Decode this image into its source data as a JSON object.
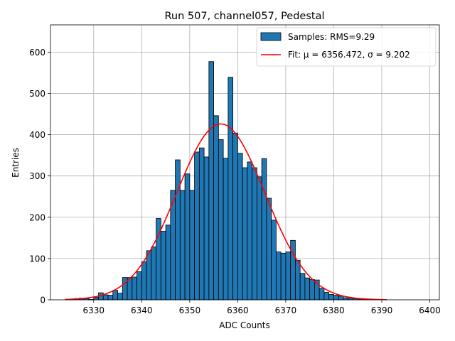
{
  "chart_data": {
    "type": "bar",
    "title": "Run 507, channel057, Pedestal",
    "xlabel": "ADC Counts",
    "ylabel": "Entries",
    "xlim": [
      6321,
      6402
    ],
    "ylim": [
      0,
      666
    ],
    "xticks": [
      6330,
      6340,
      6350,
      6360,
      6370,
      6380,
      6390,
      6400
    ],
    "yticks": [
      0,
      100,
      200,
      300,
      400,
      500,
      600
    ],
    "grid": true,
    "legend": {
      "placement": "top-right",
      "entries": [
        {
          "label": "Samples: RMS=9.29",
          "kind": "patch"
        },
        {
          "label": "Fit: μ = 6356.472, σ = 9.202",
          "kind": "line"
        }
      ]
    },
    "histogram": {
      "name": "Samples: RMS=9.29",
      "color": "#1f77b4",
      "edge_color": "#000000",
      "bin_width": 1,
      "bins": [
        [
          6325,
          2
        ],
        [
          6326,
          3
        ],
        [
          6327,
          4
        ],
        [
          6328,
          3
        ],
        [
          6329,
          1
        ],
        [
          6330,
          6
        ],
        [
          6331,
          17
        ],
        [
          6332,
          12
        ],
        [
          6333,
          11
        ],
        [
          6334,
          23
        ],
        [
          6335,
          16
        ],
        [
          6336,
          54
        ],
        [
          6337,
          54
        ],
        [
          6338,
          55
        ],
        [
          6339,
          68
        ],
        [
          6340,
          92
        ],
        [
          6341,
          119
        ],
        [
          6342,
          128
        ],
        [
          6343,
          197
        ],
        [
          6344,
          166
        ],
        [
          6345,
          181
        ],
        [
          6346,
          265
        ],
        [
          6347,
          339
        ],
        [
          6348,
          265
        ],
        [
          6349,
          305
        ],
        [
          6350,
          265
        ],
        [
          6351,
          358
        ],
        [
          6352,
          368
        ],
        [
          6353,
          346
        ],
        [
          6354,
          577
        ],
        [
          6355,
          446
        ],
        [
          6356,
          388
        ],
        [
          6357,
          343
        ],
        [
          6358,
          539
        ],
        [
          6359,
          404
        ],
        [
          6360,
          355
        ],
        [
          6361,
          320
        ],
        [
          6362,
          334
        ],
        [
          6363,
          320
        ],
        [
          6364,
          298
        ],
        [
          6365,
          342
        ],
        [
          6366,
          246
        ],
        [
          6367,
          193
        ],
        [
          6368,
          116
        ],
        [
          6369,
          113
        ],
        [
          6370,
          116
        ],
        [
          6371,
          144
        ],
        [
          6372,
          96
        ],
        [
          6373,
          64
        ],
        [
          6374,
          53
        ],
        [
          6375,
          49
        ],
        [
          6376,
          48
        ],
        [
          6377,
          28
        ],
        [
          6378,
          18
        ],
        [
          6379,
          13
        ],
        [
          6380,
          11
        ],
        [
          6381,
          9
        ],
        [
          6382,
          5
        ],
        [
          6383,
          4
        ],
        [
          6384,
          3
        ],
        [
          6385,
          2
        ],
        [
          6386,
          2
        ],
        [
          6387,
          2
        ],
        [
          6388,
          1
        ],
        [
          6389,
          1
        ],
        [
          6390,
          1
        ]
      ]
    },
    "fit": {
      "name": "Fit: μ = 6356.472, σ = 9.202",
      "color": "#ff0000",
      "model": "gaussian",
      "mu": 6356.472,
      "sigma": 9.202,
      "amplitude": 426,
      "x_range": [
        6324,
        6391
      ]
    }
  }
}
